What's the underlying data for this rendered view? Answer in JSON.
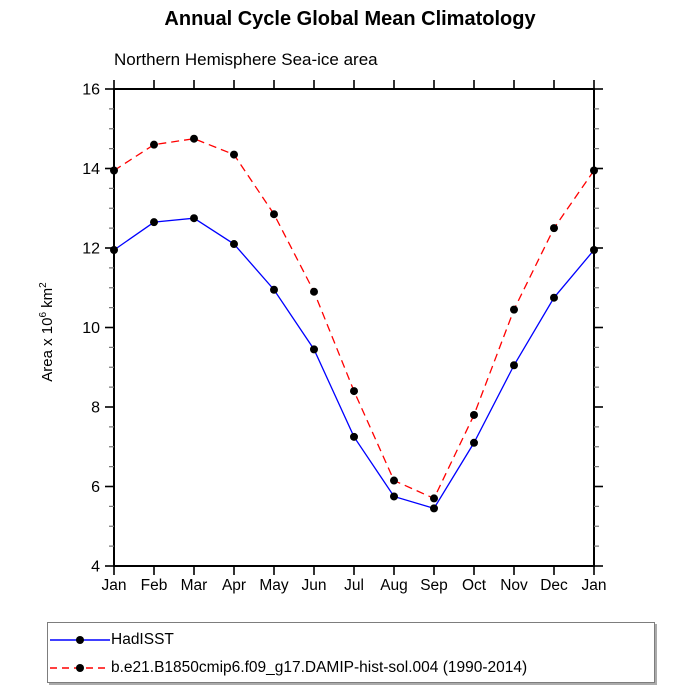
{
  "page": {
    "background": "#ffffff"
  },
  "chart_data": {
    "type": "line",
    "title": "Annual Cycle Global Mean Climatology",
    "subtitle": "Northern Hemisphere Sea-ice area",
    "ylabel": {
      "prefix": "Area x 10",
      "sup1": "6",
      "mid": " km",
      "sup2": "2"
    },
    "categories": [
      "Jan",
      "Feb",
      "Mar",
      "Apr",
      "May",
      "Jun",
      "Jul",
      "Aug",
      "Sep",
      "Oct",
      "Nov",
      "Dec",
      "Jan"
    ],
    "ylim": [
      4,
      16
    ],
    "yticks": [
      4,
      6,
      8,
      10,
      12,
      14,
      16
    ],
    "minor_tick_step": 0.5,
    "grid": false,
    "axis_color": "#000000",
    "minor_tick_color": "#777777",
    "marker_color": "#000000",
    "legend_position": "bottom-left",
    "series": [
      {
        "name": "HadISST",
        "color": "#0000ff",
        "line_style": "solid",
        "values": [
          11.95,
          12.65,
          12.75,
          12.1,
          10.95,
          9.45,
          7.25,
          5.75,
          5.45,
          7.1,
          9.05,
          10.75,
          11.95
        ]
      },
      {
        "name": "b.e21.B1850cmip6.f09_g17.DAMIP-hist-sol.004 (1990-2014)",
        "color": "#ff0000",
        "line_style": "dashed",
        "values": [
          13.95,
          14.6,
          14.75,
          14.35,
          12.85,
          10.9,
          8.4,
          6.15,
          5.7,
          7.8,
          10.45,
          12.5,
          13.95
        ]
      }
    ]
  }
}
